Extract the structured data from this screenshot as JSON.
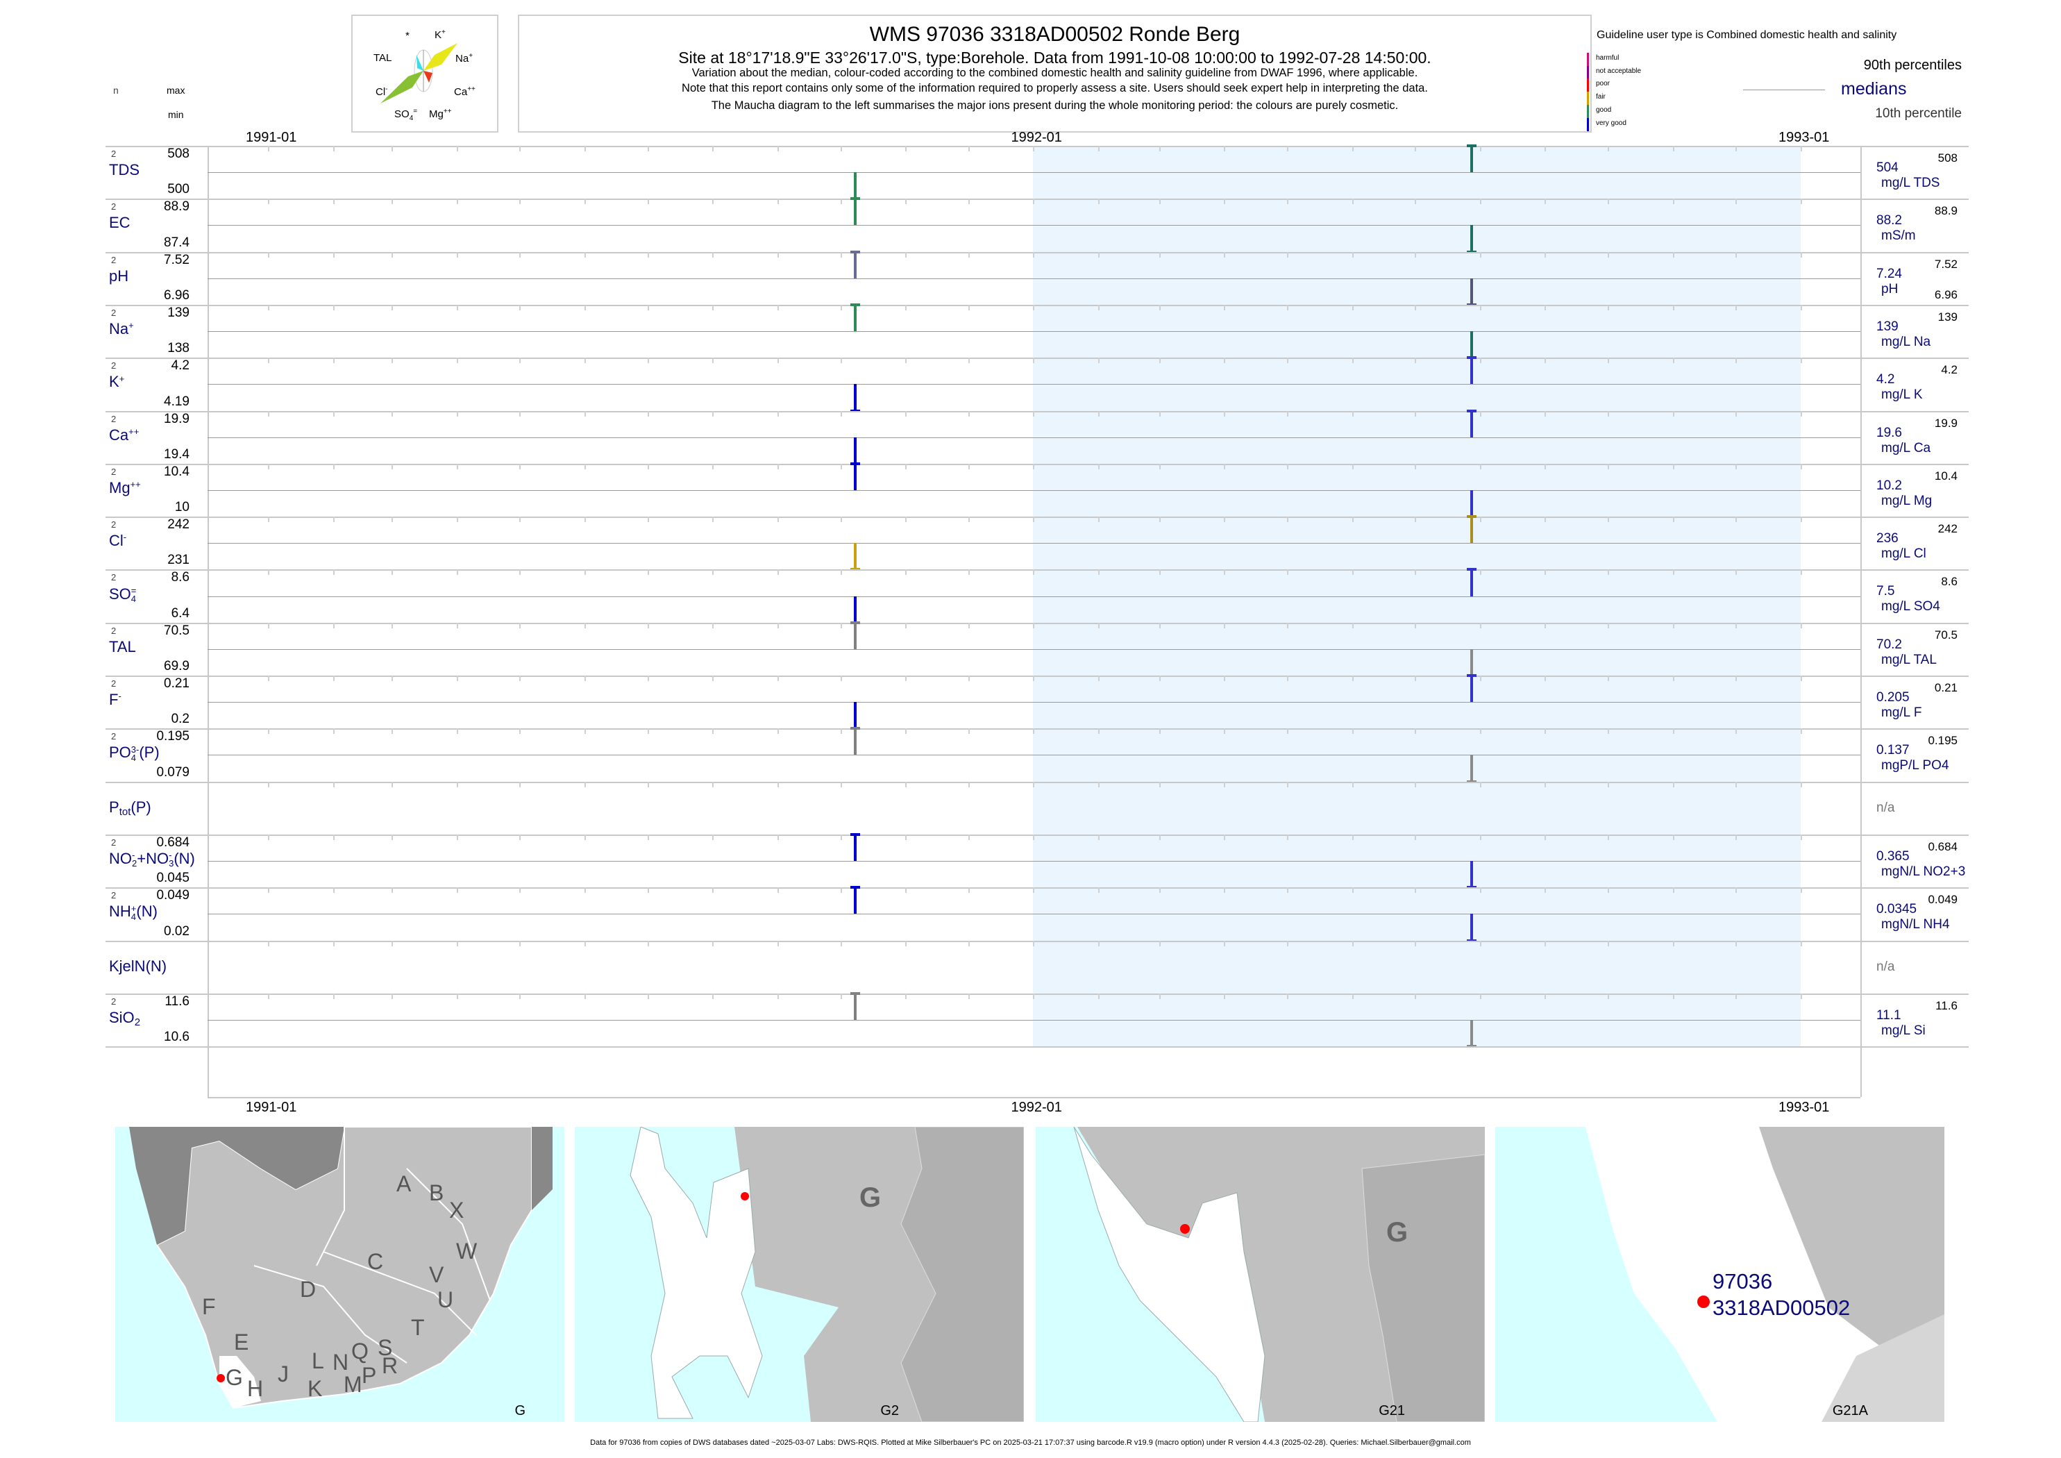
{
  "title": "WMS 97036 3318AD00502 Ronde Berg",
  "subtitle": "Site at 18°17'18.9\"E 33°26'17.0\"S, type:Borehole.  Data from 1991-10-08 10:00:00 to 1992-07-28 14:50:00.",
  "notes": [
    "Variation about the median,  colour-coded according to the combined domestic health and salinity guideline from DWAF 1996, where applicable.",
    "Note that this report contains only some of the information required to properly assess a site. Users should seek expert help in interpreting the data.",
    "The Maucha diagram to the left summarises the major ions present during the whole monitoring period: the colours are purely cosmetic."
  ],
  "maucha": {
    "labels": {
      "star": "*",
      "k": "K",
      "k_sup": "+",
      "tal": "TAL",
      "na": "Na",
      "na_sup": "+",
      "cl": "Cl",
      "cl_sup": "-",
      "ca": "Ca",
      "ca_sup": "++",
      "so4": "SO",
      "so4_sub": "4",
      "so4_sup": "=",
      "mg": "Mg",
      "mg_sup": "++"
    }
  },
  "header_cols": {
    "n": "n",
    "max": "max",
    "min": "min"
  },
  "legend": {
    "guideline": "Guideline user type is Combined domestic health and salinity",
    "classes": [
      {
        "label": "harmful",
        "color": "#cc1177"
      },
      {
        "label": "not acceptable",
        "color": "#880088"
      },
      {
        "label": "poor",
        "color": "#ff0000"
      },
      {
        "label": "fair",
        "color": "#d4a000"
      },
      {
        "label": "good",
        "color": "#2e8b57"
      },
      {
        "label": "very good",
        "color": "#0000cc"
      }
    ],
    "p90": "90th percentiles",
    "medians": "medians",
    "p10": "10th percentile"
  },
  "chart_data": {
    "type": "bar",
    "title": "WMS 97036 3318AD00502 Ronde Berg",
    "x_ticks": [
      "1991-01",
      "1992-01",
      "1993-01"
    ],
    "xlim": [
      "1991-01-01",
      "1993-01-01"
    ],
    "shaded_period": [
      "1992-01-01",
      "1993-01-01"
    ],
    "sample_dates": [
      "1991-10-08",
      "1992-07-28"
    ],
    "rows": [
      {
        "name": [
          {
            "t": "TDS"
          }
        ],
        "n": "2",
        "max": "508",
        "min": "500",
        "median": "504",
        "unit": "mg/L TDS",
        "rmax": "508",
        "values": [
          500,
          508
        ],
        "colors": [
          "#2e8b57",
          "#1f6f64"
        ]
      },
      {
        "name": [
          {
            "t": "EC"
          }
        ],
        "n": "2",
        "max": "88.9",
        "min": "87.4",
        "median": "88.2",
        "unit": "mS/m",
        "rmax": "88.9",
        "values": [
          88.9,
          87.4
        ],
        "colors": [
          "#2e8b57",
          "#1f6f64"
        ]
      },
      {
        "name": [
          {
            "t": "pH"
          }
        ],
        "n": "2",
        "max": "7.52",
        "min": "6.96",
        "median": "7.24",
        "unit": "pH",
        "rmax": "7.52",
        "rmin": "6.96",
        "values": [
          7.52,
          6.96
        ],
        "colors": [
          "#6a6a96",
          "#55557a"
        ]
      },
      {
        "name": [
          {
            "t": "Na",
            "sup": "+"
          }
        ],
        "n": "2",
        "max": "139",
        "min": "138",
        "median": "139",
        "unit": "mg/L Na",
        "rmax": "139",
        "values": [
          139,
          138
        ],
        "colors": [
          "#2e8b57",
          "#1f6f64"
        ]
      },
      {
        "name": [
          {
            "t": "K",
            "sup": "+"
          }
        ],
        "n": "2",
        "max": "4.2",
        "min": "4.19",
        "median": "4.2",
        "unit": "mg/L K",
        "rmax": "4.2",
        "values": [
          4.19,
          4.2
        ],
        "colors": [
          "#0000cc",
          "#3333cc"
        ]
      },
      {
        "name": [
          {
            "t": "Ca",
            "sup": "++"
          }
        ],
        "n": "2",
        "max": "19.9",
        "min": "19.4",
        "median": "19.6",
        "unit": "mg/L Ca",
        "rmax": "19.9",
        "values": [
          19.4,
          19.9
        ],
        "colors": [
          "#0000cc",
          "#3333cc"
        ]
      },
      {
        "name": [
          {
            "t": "Mg",
            "sup": "++"
          }
        ],
        "n": "2",
        "max": "10.4",
        "min": "10",
        "median": "10.2",
        "unit": "mg/L Mg",
        "rmax": "10.4",
        "values": [
          10.4,
          10
        ],
        "colors": [
          "#0000cc",
          "#3333cc"
        ]
      },
      {
        "name": [
          {
            "t": "Cl",
            "sup": "-"
          }
        ],
        "n": "2",
        "max": "242",
        "min": "231",
        "median": "236",
        "unit": "mg/L Cl",
        "rmax": "242",
        "values": [
          231,
          242
        ],
        "colors": [
          "#c8a010",
          "#a89020"
        ]
      },
      {
        "name": [
          {
            "t": "SO",
            "sub": "4",
            "sup": "="
          }
        ],
        "n": "2",
        "max": "8.6",
        "min": "6.4",
        "median": "7.5",
        "unit": "mg/L SO4",
        "rmax": "8.6",
        "values": [
          6.4,
          8.6
        ],
        "colors": [
          "#0000cc",
          "#3333cc"
        ]
      },
      {
        "name": [
          {
            "t": "TAL"
          }
        ],
        "n": "2",
        "max": "70.5",
        "min": "69.9",
        "median": "70.2",
        "unit": "mg/L TAL",
        "rmax": "70.5",
        "values": [
          70.5,
          69.9
        ],
        "colors": [
          "#808080",
          "#8a8a8a"
        ]
      },
      {
        "name": [
          {
            "t": "F",
            "sup": "-"
          }
        ],
        "n": "2",
        "max": "0.21",
        "min": "0.2",
        "median": "0.205",
        "unit": "mg/L F",
        "rmax": "0.21",
        "values": [
          0.2,
          0.21
        ],
        "colors": [
          "#0000cc",
          "#3333cc"
        ]
      },
      {
        "name": [
          {
            "t": "PO",
            "sub": "4",
            "sup": "3-"
          },
          {
            "t": "(P)"
          }
        ],
        "n": "2",
        "max": "0.195",
        "min": "0.079",
        "median": "0.137",
        "unit": "mgP/L PO4",
        "rmax": "0.195",
        "values": [
          0.195,
          0.079
        ],
        "colors": [
          "#808080",
          "#8a8a8a"
        ]
      },
      {
        "name": [
          {
            "t": "P"
          },
          {
            "lsub": "tot"
          },
          {
            "t": "(P)"
          }
        ],
        "na": "n/a"
      },
      {
        "name": [
          {
            "t": "NO",
            "sub": "2",
            "sup": "-"
          },
          {
            "t": "+NO",
            "sub": "3",
            "sup": "-"
          },
          {
            "t": "(N)"
          }
        ],
        "n": "2",
        "max": "0.684",
        "min": "0.045",
        "median": "0.365",
        "unit": "mgN/L NO2+3",
        "rmax": "0.684",
        "values": [
          0.684,
          0.045
        ],
        "colors": [
          "#0000cc",
          "#3333cc"
        ]
      },
      {
        "name": [
          {
            "t": "NH",
            "sub": "4",
            "sup": "+"
          },
          {
            "t": "(N)"
          }
        ],
        "n": "2",
        "max": "0.049",
        "min": "0.02",
        "median": "0.0345",
        "unit": "mgN/L NH4",
        "rmax": "0.049",
        "values": [
          0.049,
          0.02
        ],
        "colors": [
          "#0000cc",
          "#3333cc"
        ]
      },
      {
        "name": [
          {
            "t": "KjelN(N)"
          }
        ],
        "na": "n/a"
      },
      {
        "name": [
          {
            "t": "SiO"
          },
          {
            "lsub": "2"
          }
        ],
        "n": "2",
        "max": "11.6",
        "min": "10.6",
        "median": "11.1",
        "unit": "mg/L Si",
        "rmax": "11.6",
        "values": [
          11.6,
          10.6
        ],
        "colors": [
          "#808080",
          "#8a8a8a"
        ]
      }
    ]
  },
  "maps": {
    "map1": {
      "label": "G",
      "regions": [
        "A",
        "B",
        "X",
        "W",
        "C",
        "V",
        "D",
        "U",
        "F",
        "T",
        "E",
        "Q",
        "S",
        "L",
        "N",
        "R",
        "J",
        "P",
        "G",
        "M",
        "H",
        "K"
      ]
    },
    "map2": {
      "label": "G2",
      "region": "G"
    },
    "map3": {
      "label": "G21",
      "region": "G"
    },
    "map4": {
      "label": "G21A",
      "site_id": "97036",
      "site_code": "3318AD00502"
    }
  },
  "footer": "Data for 97036 from copies of DWS databases dated ~2025-03-07 Labs: DWS-RQIS. Plotted at Mike Silberbauer's PC on 2025-03-21 17:07:37 using barcode.R v19.9 (macro option) under R version 4.4.3 (2025-02-28). Queries: Michael.Silberbauer@gmail.com"
}
